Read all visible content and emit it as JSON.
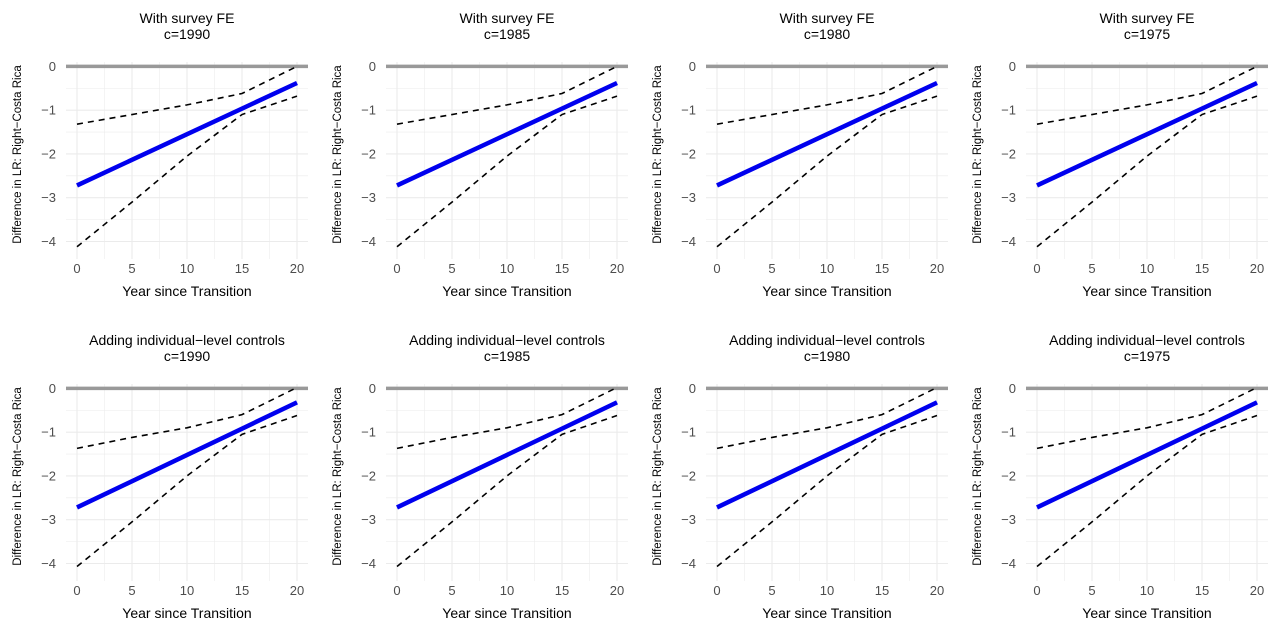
{
  "chart_data": [
    {
      "type": "line",
      "title": "With survey FE",
      "subtitle": "c=1990",
      "xlabel": "Year since Transition",
      "ylabel": "Difference in LR: Right−Costa Rica",
      "xlim": [
        -1,
        21
      ],
      "ylim": [
        -4.4,
        0.1
      ],
      "xticks": [
        "0",
        "5",
        "10",
        "15",
        "20"
      ],
      "yticks": [
        "0",
        "−1",
        "−2",
        "−3",
        "−4"
      ],
      "grid": true,
      "reference_line": 0,
      "series": [
        {
          "role": "estimate",
          "x": [
            0,
            20
          ],
          "y": [
            -2.72,
            -0.38
          ]
        },
        {
          "role": "upper",
          "x": [
            0,
            5,
            10,
            15,
            20
          ],
          "y": [
            -1.32,
            -1.1,
            -0.88,
            -0.62,
            0.0
          ]
        },
        {
          "role": "lower",
          "x": [
            0,
            5,
            10,
            15,
            20
          ],
          "y": [
            -4.12,
            -3.1,
            -2.05,
            -1.1,
            -0.68
          ]
        }
      ]
    },
    {
      "type": "line",
      "title": "With survey FE",
      "subtitle": "c=1985",
      "xlabel": "Year since Transition",
      "ylabel": "Difference in LR: Right−Costa Rica",
      "xlim": [
        -1,
        21
      ],
      "ylim": [
        -4.4,
        0.1
      ],
      "xticks": [
        "0",
        "5",
        "10",
        "15",
        "20"
      ],
      "yticks": [
        "0",
        "−1",
        "−2",
        "−3",
        "−4"
      ],
      "grid": true,
      "reference_line": 0,
      "series": [
        {
          "role": "estimate",
          "x": [
            0,
            20
          ],
          "y": [
            -2.72,
            -0.38
          ]
        },
        {
          "role": "upper",
          "x": [
            0,
            5,
            10,
            15,
            20
          ],
          "y": [
            -1.32,
            -1.1,
            -0.88,
            -0.62,
            0.0
          ]
        },
        {
          "role": "lower",
          "x": [
            0,
            5,
            10,
            15,
            20
          ],
          "y": [
            -4.12,
            -3.1,
            -2.05,
            -1.1,
            -0.68
          ]
        }
      ]
    },
    {
      "type": "line",
      "title": "With survey FE",
      "subtitle": "c=1980",
      "xlabel": "Year since Transition",
      "ylabel": "Difference in LR: Right−Costa Rica",
      "xlim": [
        -1,
        21
      ],
      "ylim": [
        -4.4,
        0.1
      ],
      "xticks": [
        "0",
        "5",
        "10",
        "15",
        "20"
      ],
      "yticks": [
        "0",
        "−1",
        "−2",
        "−3",
        "−4"
      ],
      "grid": true,
      "reference_line": 0,
      "series": [
        {
          "role": "estimate",
          "x": [
            0,
            20
          ],
          "y": [
            -2.72,
            -0.38
          ]
        },
        {
          "role": "upper",
          "x": [
            0,
            5,
            10,
            15,
            20
          ],
          "y": [
            -1.32,
            -1.1,
            -0.88,
            -0.62,
            0.0
          ]
        },
        {
          "role": "lower",
          "x": [
            0,
            5,
            10,
            15,
            20
          ],
          "y": [
            -4.12,
            -3.1,
            -2.05,
            -1.1,
            -0.68
          ]
        }
      ]
    },
    {
      "type": "line",
      "title": "With survey FE",
      "subtitle": "c=1975",
      "xlabel": "Year since Transition",
      "ylabel": "Difference in LR: Right−Costa Rica",
      "xlim": [
        -1,
        21
      ],
      "ylim": [
        -4.4,
        0.1
      ],
      "xticks": [
        "0",
        "5",
        "10",
        "15",
        "20"
      ],
      "yticks": [
        "0",
        "−1",
        "−2",
        "−3",
        "−4"
      ],
      "grid": true,
      "reference_line": 0,
      "series": [
        {
          "role": "estimate",
          "x": [
            0,
            20
          ],
          "y": [
            -2.72,
            -0.38
          ]
        },
        {
          "role": "upper",
          "x": [
            0,
            5,
            10,
            15,
            20
          ],
          "y": [
            -1.32,
            -1.1,
            -0.88,
            -0.62,
            0.0
          ]
        },
        {
          "role": "lower",
          "x": [
            0,
            5,
            10,
            15,
            20
          ],
          "y": [
            -4.12,
            -3.1,
            -2.05,
            -1.1,
            -0.68
          ]
        }
      ]
    },
    {
      "type": "line",
      "title": "Adding individual−level controls",
      "subtitle": "c=1990",
      "xlabel": "Year since Transition",
      "ylabel": "Difference in LR: Right−Costa Rica",
      "xlim": [
        -1,
        21
      ],
      "ylim": [
        -4.4,
        0.1
      ],
      "xticks": [
        "0",
        "5",
        "10",
        "15",
        "20"
      ],
      "yticks": [
        "0",
        "−1",
        "−2",
        "−3",
        "−4"
      ],
      "grid": true,
      "reference_line": 0,
      "series": [
        {
          "role": "estimate",
          "x": [
            0,
            20
          ],
          "y": [
            -2.72,
            -0.32
          ]
        },
        {
          "role": "upper",
          "x": [
            0,
            5,
            10,
            15,
            20
          ],
          "y": [
            -1.37,
            -1.12,
            -0.9,
            -0.6,
            0.02
          ]
        },
        {
          "role": "lower",
          "x": [
            0,
            5,
            10,
            15,
            20
          ],
          "y": [
            -4.07,
            -3.05,
            -2.0,
            -1.05,
            -0.62
          ]
        }
      ]
    },
    {
      "type": "line",
      "title": "Adding individual−level controls",
      "subtitle": "c=1985",
      "xlabel": "Year since Transition",
      "ylabel": "Difference in LR: Right−Costa Rica",
      "xlim": [
        -1,
        21
      ],
      "ylim": [
        -4.4,
        0.1
      ],
      "xticks": [
        "0",
        "5",
        "10",
        "15",
        "20"
      ],
      "yticks": [
        "0",
        "−1",
        "−2",
        "−3",
        "−4"
      ],
      "grid": true,
      "reference_line": 0,
      "series": [
        {
          "role": "estimate",
          "x": [
            0,
            20
          ],
          "y": [
            -2.72,
            -0.32
          ]
        },
        {
          "role": "upper",
          "x": [
            0,
            5,
            10,
            15,
            20
          ],
          "y": [
            -1.37,
            -1.12,
            -0.9,
            -0.6,
            0.02
          ]
        },
        {
          "role": "lower",
          "x": [
            0,
            5,
            10,
            15,
            20
          ],
          "y": [
            -4.07,
            -3.05,
            -2.0,
            -1.05,
            -0.62
          ]
        }
      ]
    },
    {
      "type": "line",
      "title": "Adding individual−level controls",
      "subtitle": "c=1980",
      "xlabel": "Year since Transition",
      "ylabel": "Difference in LR: Right−Costa Rica",
      "xlim": [
        -1,
        21
      ],
      "ylim": [
        -4.4,
        0.1
      ],
      "xticks": [
        "0",
        "5",
        "10",
        "15",
        "20"
      ],
      "yticks": [
        "0",
        "−1",
        "−2",
        "−3",
        "−4"
      ],
      "grid": true,
      "reference_line": 0,
      "series": [
        {
          "role": "estimate",
          "x": [
            0,
            20
          ],
          "y": [
            -2.72,
            -0.32
          ]
        },
        {
          "role": "upper",
          "x": [
            0,
            5,
            10,
            15,
            20
          ],
          "y": [
            -1.37,
            -1.12,
            -0.9,
            -0.6,
            0.02
          ]
        },
        {
          "role": "lower",
          "x": [
            0,
            5,
            10,
            15,
            20
          ],
          "y": [
            -4.07,
            -3.05,
            -2.0,
            -1.05,
            -0.62
          ]
        }
      ]
    },
    {
      "type": "line",
      "title": "Adding individual−level controls",
      "subtitle": "c=1975",
      "xlabel": "Year since Transition",
      "ylabel": "Difference in LR: Right−Costa Rica",
      "xlim": [
        -1,
        21
      ],
      "ylim": [
        -4.4,
        0.1
      ],
      "xticks": [
        "0",
        "5",
        "10",
        "15",
        "20"
      ],
      "yticks": [
        "0",
        "−1",
        "−2",
        "−3",
        "−4"
      ],
      "grid": true,
      "reference_line": 0,
      "series": [
        {
          "role": "estimate",
          "x": [
            0,
            20
          ],
          "y": [
            -2.72,
            -0.32
          ]
        },
        {
          "role": "upper",
          "x": [
            0,
            5,
            10,
            15,
            20
          ],
          "y": [
            -1.37,
            -1.12,
            -0.9,
            -0.6,
            0.02
          ]
        },
        {
          "role": "lower",
          "x": [
            0,
            5,
            10,
            15,
            20
          ],
          "y": [
            -4.07,
            -3.05,
            -2.0,
            -1.05,
            -0.62
          ]
        }
      ]
    }
  ],
  "colors": {
    "estimate": "#0000ee",
    "ci": "#000000",
    "reference": "#999999",
    "grid": "#ebebeb",
    "tick_text": "#4d4d4d"
  }
}
